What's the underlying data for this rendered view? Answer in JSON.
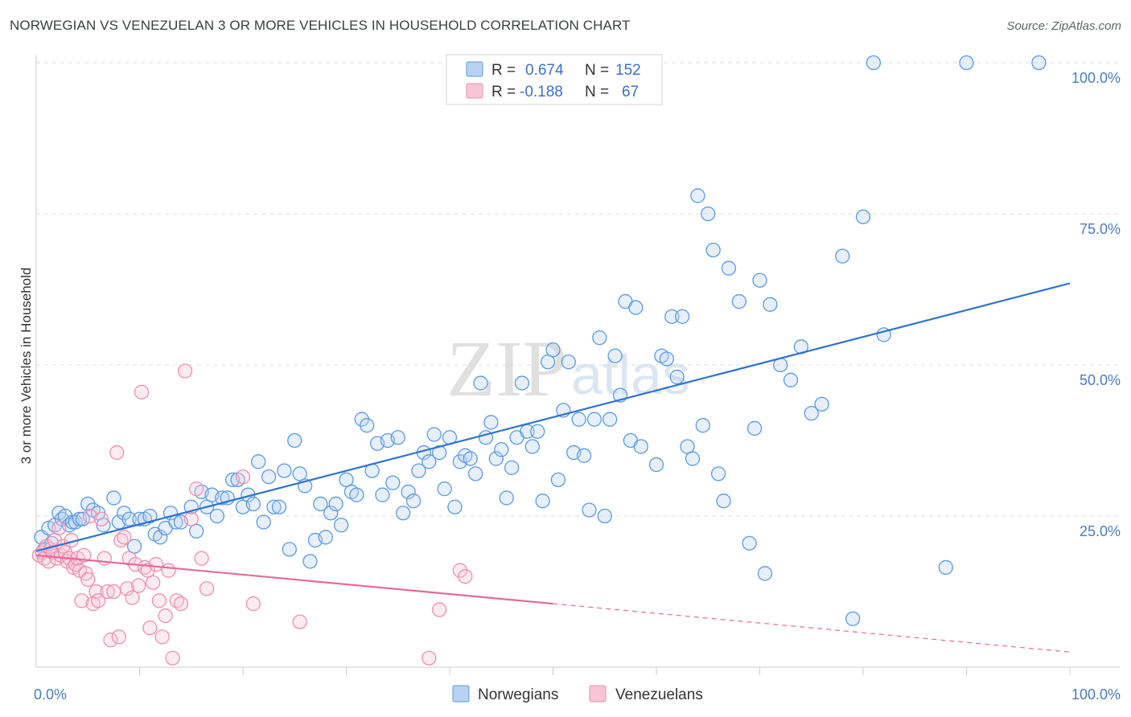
{
  "header": {
    "title": "NORWEGIAN VS VENEZUELAN 3 OR MORE VEHICLES IN HOUSEHOLD CORRELATION CHART",
    "source": "Source: ZipAtlas.com"
  },
  "watermark": {
    "zip": "ZIP",
    "atlas": "atlas"
  },
  "colors": {
    "blue": "#5b9be0",
    "blue_line": "#2f72d0",
    "blue_fill": "#b8d2f2",
    "pink": "#ee8fb0",
    "pink_line": "#e56a98",
    "pink_fill": "#f6c6d6",
    "tick": "#4a7cc4",
    "grid": "#dddddd"
  },
  "legend": {
    "row1": {
      "r_label": "R =",
      "r_value": "0.674",
      "n_label": "N =",
      "n_value": "152"
    },
    "row2": {
      "r_label": "R =",
      "r_value": "-0.188",
      "n_label": "N =",
      "n_value": "67"
    }
  },
  "bottom_legend": {
    "s1": "Norwegians",
    "s2": "Venezuelans"
  },
  "chart_data": {
    "type": "scatter",
    "title": "NORWEGIAN VS VENEZUELAN 3 OR MORE VEHICLES IN HOUSEHOLD CORRELATION CHART",
    "xlabel": "",
    "ylabel": "3 or more Vehicles in Household",
    "xlim": [
      0,
      100
    ],
    "ylim": [
      0,
      100
    ],
    "x_tick_labels": [
      "0.0%",
      "100.0%"
    ],
    "y_ticks": [
      25,
      50,
      75,
      100
    ],
    "y_tick_labels": [
      "25.0%",
      "50.0%",
      "75.0%",
      "100.0%"
    ],
    "grid": true,
    "legend_position": "top-center",
    "series": [
      {
        "name": "Norwegians",
        "r": 0.674,
        "n": 152,
        "trend": {
          "x": [
            0,
            100
          ],
          "y": [
            19.2,
            63.5
          ]
        },
        "points": [
          [
            0.5,
            21.5
          ],
          [
            0.8,
            19.5
          ],
          [
            1.2,
            23
          ],
          [
            1.5,
            20.5
          ],
          [
            1.8,
            23.5
          ],
          [
            2.2,
            25.5
          ],
          [
            2.5,
            24.5
          ],
          [
            2.8,
            25
          ],
          [
            3.2,
            23.5
          ],
          [
            3.5,
            24
          ],
          [
            3.8,
            24
          ],
          [
            4.2,
            24.5
          ],
          [
            4.5,
            24.5
          ],
          [
            5,
            27
          ],
          [
            5.5,
            26
          ],
          [
            6,
            25.5
          ],
          [
            6.5,
            23.5
          ],
          [
            7.5,
            28
          ],
          [
            8,
            24
          ],
          [
            8.5,
            25.5
          ],
          [
            9,
            24.5
          ],
          [
            9.5,
            20
          ],
          [
            10,
            24.5
          ],
          [
            10.5,
            24.5
          ],
          [
            11,
            25
          ],
          [
            11.5,
            22
          ],
          [
            12,
            21.5
          ],
          [
            12.5,
            23
          ],
          [
            13,
            25.5
          ],
          [
            13.5,
            24
          ],
          [
            14,
            24
          ],
          [
            15,
            26.5
          ],
          [
            15.5,
            22.5
          ],
          [
            16,
            29
          ],
          [
            16.5,
            26.5
          ],
          [
            17,
            28.5
          ],
          [
            17.5,
            25
          ],
          [
            18,
            28
          ],
          [
            18.5,
            28
          ],
          [
            19,
            31
          ],
          [
            19.5,
            31
          ],
          [
            20,
            26.5
          ],
          [
            20.5,
            28.5
          ],
          [
            21,
            27
          ],
          [
            21.5,
            34
          ],
          [
            22,
            24
          ],
          [
            22.5,
            31.5
          ],
          [
            23,
            26.5
          ],
          [
            23.5,
            26.5
          ],
          [
            24,
            32.5
          ],
          [
            24.5,
            19.5
          ],
          [
            25,
            37.5
          ],
          [
            25.5,
            32
          ],
          [
            26,
            30
          ],
          [
            26.5,
            17.5
          ],
          [
            27,
            21
          ],
          [
            27.5,
            27
          ],
          [
            28,
            21.5
          ],
          [
            28.5,
            25.5
          ],
          [
            29,
            27
          ],
          [
            29.5,
            23.5
          ],
          [
            30,
            31
          ],
          [
            30.5,
            29
          ],
          [
            31,
            28.5
          ],
          [
            31.5,
            41
          ],
          [
            32,
            40
          ],
          [
            32.5,
            32.5
          ],
          [
            33,
            37
          ],
          [
            33.5,
            28.5
          ],
          [
            34,
            37.5
          ],
          [
            34.5,
            30.5
          ],
          [
            35,
            38
          ],
          [
            35.5,
            25.5
          ],
          [
            36,
            29
          ],
          [
            36.5,
            27.5
          ],
          [
            37,
            32.5
          ],
          [
            37.5,
            35.5
          ],
          [
            38,
            34
          ],
          [
            38.5,
            38.5
          ],
          [
            39,
            35.5
          ],
          [
            39.5,
            29.5
          ],
          [
            40,
            38
          ],
          [
            40.5,
            26.5
          ],
          [
            41,
            34
          ],
          [
            41.5,
            35
          ],
          [
            42,
            34.5
          ],
          [
            42.5,
            32
          ],
          [
            43,
            47
          ],
          [
            43.5,
            38
          ],
          [
            44,
            40.5
          ],
          [
            44.5,
            34.5
          ],
          [
            45,
            36
          ],
          [
            45.5,
            28
          ],
          [
            46,
            33
          ],
          [
            46.5,
            38
          ],
          [
            47,
            47
          ],
          [
            47.5,
            39
          ],
          [
            48,
            36.5
          ],
          [
            48.5,
            39
          ],
          [
            49,
            27.5
          ],
          [
            49.5,
            50.5
          ],
          [
            50,
            52.5
          ],
          [
            50.5,
            31
          ],
          [
            51,
            42.5
          ],
          [
            51.5,
            50.5
          ],
          [
            52,
            35.5
          ],
          [
            52.5,
            41
          ],
          [
            53,
            35
          ],
          [
            53.5,
            26
          ],
          [
            54,
            41
          ],
          [
            54.5,
            54.5
          ],
          [
            55,
            25
          ],
          [
            55.5,
            41
          ],
          [
            56,
            51.5
          ],
          [
            56.5,
            45
          ],
          [
            57,
            60.5
          ],
          [
            57.5,
            37.5
          ],
          [
            58,
            59.5
          ],
          [
            58.5,
            36.5
          ],
          [
            60,
            33.5
          ],
          [
            60.5,
            51.5
          ],
          [
            61,
            51
          ],
          [
            61.5,
            58
          ],
          [
            62,
            48
          ],
          [
            62.5,
            58
          ],
          [
            63,
            36.5
          ],
          [
            63.5,
            34.5
          ],
          [
            64,
            78
          ],
          [
            64.5,
            40
          ],
          [
            65,
            75
          ],
          [
            65.5,
            69
          ],
          [
            66,
            32
          ],
          [
            66.5,
            27.5
          ],
          [
            67,
            66
          ],
          [
            68,
            60.5
          ],
          [
            69,
            20.5
          ],
          [
            69.5,
            39.5
          ],
          [
            70,
            64
          ],
          [
            70.5,
            15.5
          ],
          [
            71,
            60
          ],
          [
            72,
            50
          ],
          [
            73,
            47.5
          ],
          [
            74,
            53
          ],
          [
            75,
            42
          ],
          [
            76,
            43.5
          ],
          [
            78,
            68
          ],
          [
            79,
            8
          ],
          [
            80,
            74.5
          ],
          [
            81,
            100
          ],
          [
            82,
            55
          ],
          [
            88,
            16.5
          ],
          [
            90,
            100
          ],
          [
            97,
            100
          ]
        ]
      },
      {
        "name": "Venezuelans",
        "r": -0.188,
        "n": 67,
        "trend": {
          "x": [
            0,
            50
          ],
          "y": [
            18.5,
            10.5
          ],
          "dash_to": [
            100,
            2.5
          ]
        },
        "points": [
          [
            0.3,
            18.5
          ],
          [
            0.6,
            19
          ],
          [
            0.8,
            18
          ],
          [
            1,
            20
          ],
          [
            1.2,
            17.5
          ],
          [
            1.4,
            19.5
          ],
          [
            1.6,
            19
          ],
          [
            1.8,
            21
          ],
          [
            2,
            18
          ],
          [
            2.2,
            23
          ],
          [
            2.4,
            18.5
          ],
          [
            2.6,
            20
          ],
          [
            2.8,
            19
          ],
          [
            3,
            17.5
          ],
          [
            3.2,
            18
          ],
          [
            3.4,
            21
          ],
          [
            3.6,
            16.5
          ],
          [
            3.8,
            17
          ],
          [
            4,
            18
          ],
          [
            4.2,
            16
          ],
          [
            4.4,
            11
          ],
          [
            4.6,
            18.5
          ],
          [
            4.8,
            15.5
          ],
          [
            5,
            14.5
          ],
          [
            5.2,
            25
          ],
          [
            5.5,
            10.5
          ],
          [
            5.8,
            12.5
          ],
          [
            6,
            11
          ],
          [
            6.3,
            24.5
          ],
          [
            6.6,
            18
          ],
          [
            6.9,
            12.5
          ],
          [
            7.2,
            4.5
          ],
          [
            7.5,
            12.5
          ],
          [
            7.8,
            35.5
          ],
          [
            8,
            5
          ],
          [
            8.2,
            21
          ],
          [
            8.5,
            21.5
          ],
          [
            8.8,
            13
          ],
          [
            9,
            18
          ],
          [
            9.3,
            11.5
          ],
          [
            9.6,
            17
          ],
          [
            9.9,
            13.5
          ],
          [
            10.2,
            45.5
          ],
          [
            10.5,
            16.5
          ],
          [
            10.8,
            16
          ],
          [
            11,
            6.5
          ],
          [
            11.3,
            14
          ],
          [
            11.6,
            17
          ],
          [
            11.9,
            11
          ],
          [
            12.2,
            5
          ],
          [
            12.5,
            8.5
          ],
          [
            12.8,
            16
          ],
          [
            13.2,
            1.5
          ],
          [
            13.6,
            11
          ],
          [
            14,
            10.5
          ],
          [
            14.4,
            49
          ],
          [
            15,
            24.5
          ],
          [
            15.5,
            29.5
          ],
          [
            16,
            18
          ],
          [
            16.5,
            13
          ],
          [
            20,
            31.5
          ],
          [
            21,
            10.5
          ],
          [
            25.5,
            7.5
          ],
          [
            38,
            1.5
          ],
          [
            39,
            9.5
          ],
          [
            41,
            16
          ],
          [
            41.5,
            15
          ]
        ]
      }
    ]
  }
}
